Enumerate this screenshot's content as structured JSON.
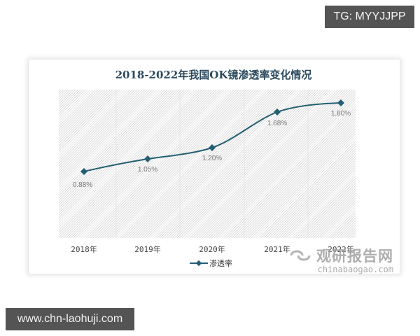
{
  "badges": {
    "top_right": "TG: MYYJJPP",
    "bottom_left": "www.chn-laohuji.com"
  },
  "watermark": {
    "cn": "观研报告网",
    "en": "chinabaogao.com"
  },
  "colors": {
    "line": "#245f73",
    "title": "#2b4a5e",
    "label": "#777777",
    "badge_bg": "#545454"
  },
  "chart_data": {
    "type": "line",
    "title": "2018-2022年我国OK镜渗透率变化情况",
    "xlabel": "",
    "ylabel": "",
    "categories": [
      "2018年",
      "2019年",
      "2020年",
      "2021年",
      "2022年"
    ],
    "series": [
      {
        "name": "渗透率",
        "values": [
          0.88,
          1.05,
          1.2,
          1.68,
          1.8
        ],
        "labels": [
          "0.88%",
          "1.05%",
          "1.20%",
          "1.68%",
          "1.80%"
        ]
      }
    ],
    "ylim": [
      0.5,
      2.0
    ],
    "grid": "vertical",
    "legend_position": "bottom",
    "smooth": true
  }
}
